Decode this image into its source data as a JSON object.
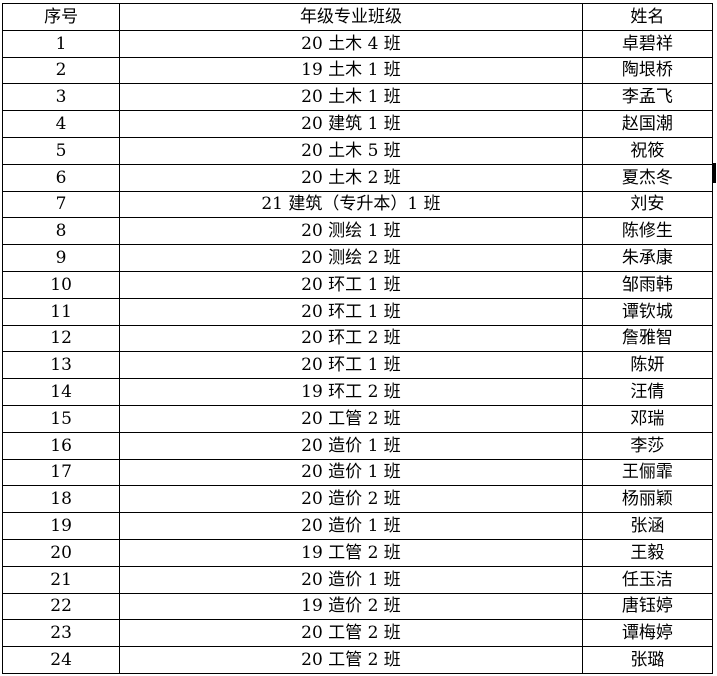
{
  "table": {
    "headers": [
      "序号",
      "年级专业班级",
      "姓名"
    ],
    "rows": [
      [
        "1",
        "20 土木 4 班",
        "卓碧祥"
      ],
      [
        "2",
        "19 土木 1 班",
        "陶垠桥"
      ],
      [
        "3",
        "20 土木 1 班",
        "李孟飞"
      ],
      [
        "4",
        "20 建筑 1 班",
        "赵国潮"
      ],
      [
        "5",
        "20 土木 5 班",
        "祝筱"
      ],
      [
        "6",
        "20 土木 2 班",
        "夏杰冬"
      ],
      [
        "7",
        "21 建筑（专升本）1 班",
        "刘安"
      ],
      [
        "8",
        "20 测绘 1 班",
        "陈修生"
      ],
      [
        "9",
        "20 测绘 2 班",
        "朱承康"
      ],
      [
        "10",
        "20 环工 1 班",
        "邹雨韩"
      ],
      [
        "11",
        "20 环工 1 班",
        "谭钦城"
      ],
      [
        "12",
        "20 环工 2 班",
        "詹雅智"
      ],
      [
        "13",
        "20 环工 1 班",
        "陈妍"
      ],
      [
        "14",
        "19 环工 2 班",
        "汪倩"
      ],
      [
        "15",
        "20 工管 2 班",
        "邓瑞"
      ],
      [
        "16",
        "20 造价 1 班",
        "李莎"
      ],
      [
        "17",
        "20 造价 1 班",
        "王俪霏"
      ],
      [
        "18",
        "20 造价 2 班",
        "杨丽颖"
      ],
      [
        "19",
        "20 造价 1 班",
        "张涵"
      ],
      [
        "20",
        "19 工管 2 班",
        "王毅"
      ],
      [
        "21",
        "20 造价 1 班",
        "任玉洁"
      ],
      [
        "22",
        "19 造价 2 班",
        "唐钰婷"
      ],
      [
        "23",
        "20 工管 2 班",
        "谭梅婷"
      ],
      [
        "24",
        "20 工管 2 班",
        "张璐"
      ]
    ]
  }
}
